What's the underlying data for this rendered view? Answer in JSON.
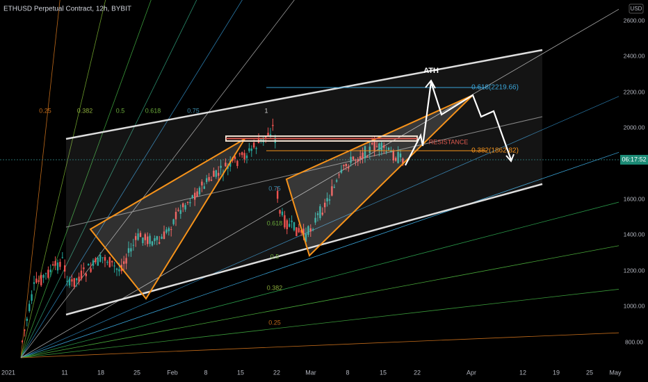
{
  "header": {
    "title": "ETHUSD Perpetual Contract, 12h, BYBIT"
  },
  "price_axis": {
    "unit": "USD",
    "labels": [
      "2600.00",
      "2400.00",
      "2200.00",
      "2000.00",
      "1600.00",
      "1400.00",
      "1200.00",
      "1000.00",
      "800.00"
    ],
    "current": "06:17:52"
  },
  "time_axis": {
    "labels": [
      "2021",
      "11",
      "18",
      "25",
      "Feb",
      "8",
      "15",
      "22",
      "Mar",
      "8",
      "15",
      "22",
      "Apr",
      "12",
      "19",
      "25",
      "May"
    ]
  },
  "fan_labels": {
    "top": [
      "0.25",
      "0.382",
      "0.5",
      "0.618",
      "0.75",
      "1"
    ],
    "middle": [
      "0.75",
      "0.618",
      "0.5",
      "0.382",
      "0.25"
    ]
  },
  "annotations": {
    "ath": "ATH",
    "resistance": "RESISTANCE",
    "fib_high": "0.618(2219.66)",
    "fib_low": "0.382(1862.82)"
  }
}
